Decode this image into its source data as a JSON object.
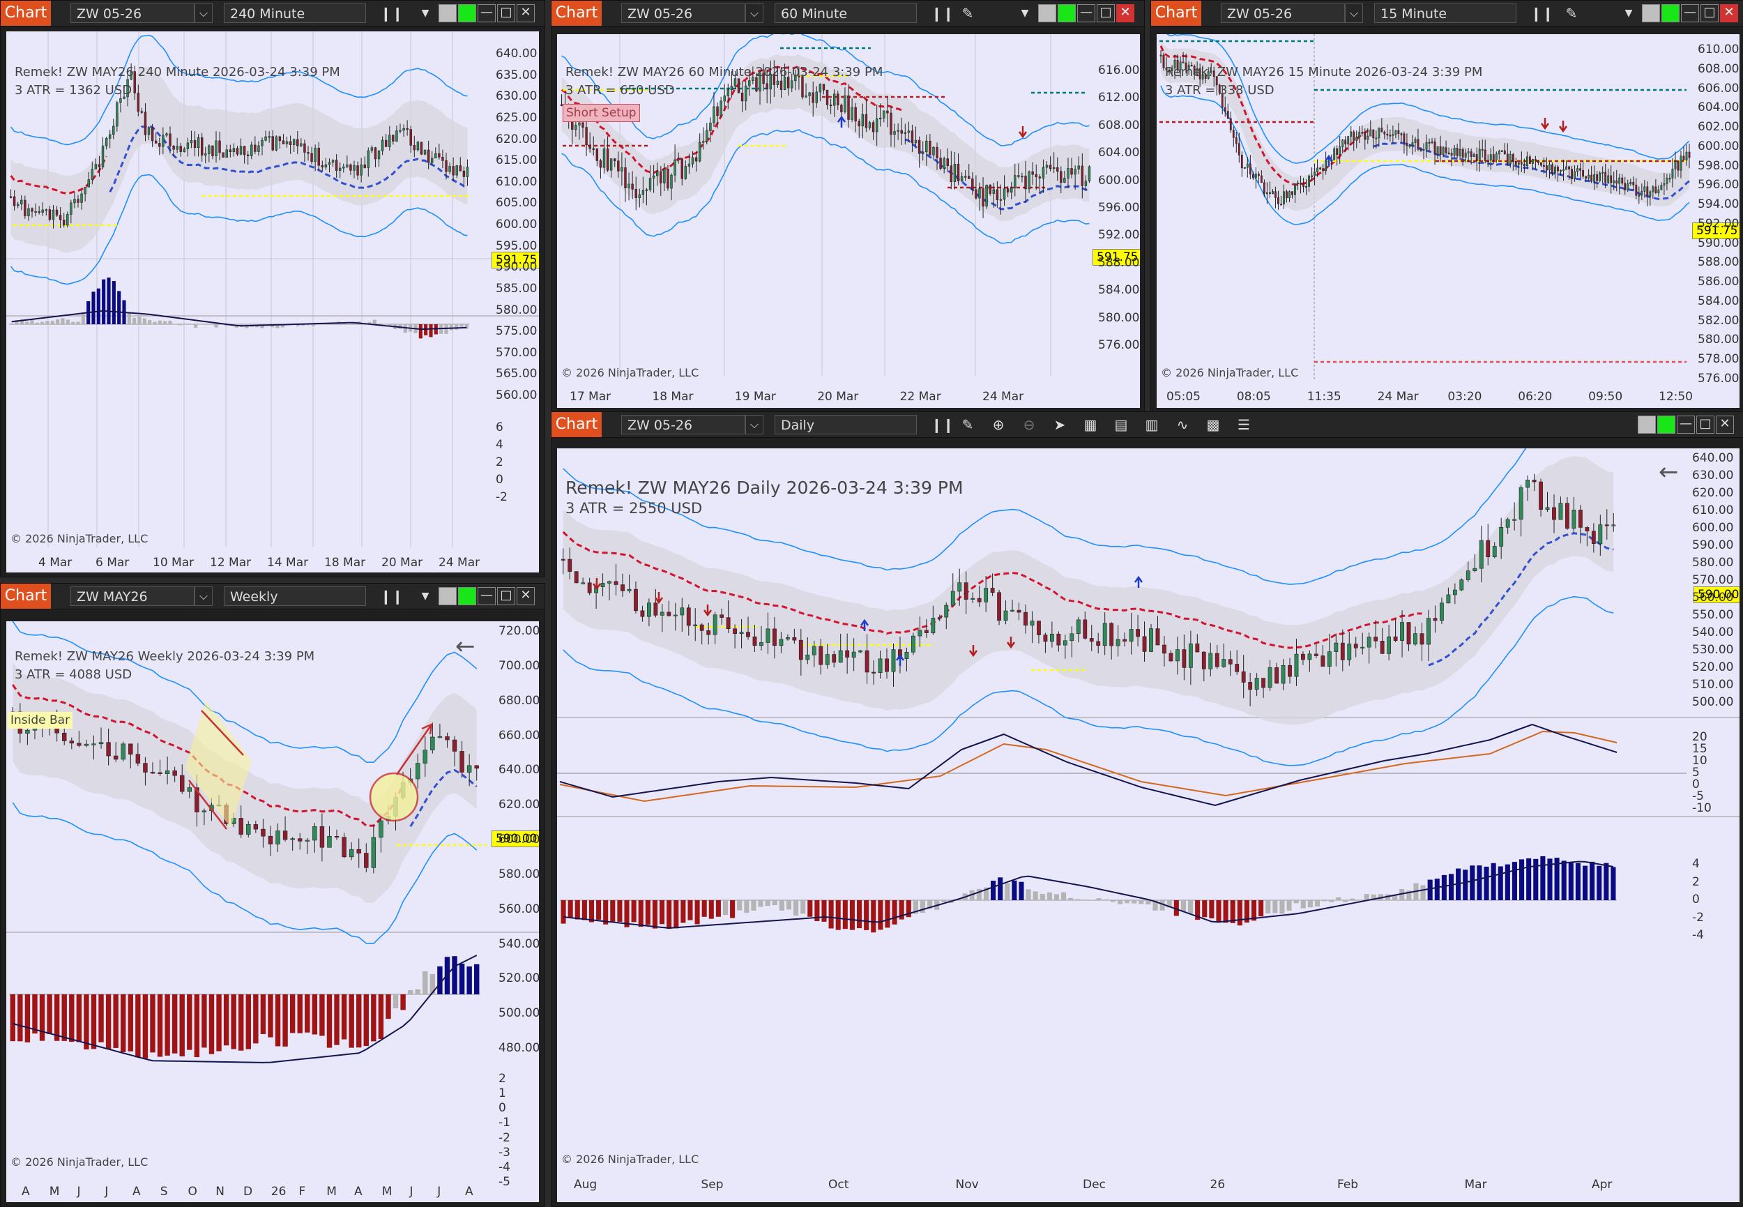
{
  "windows": [
    {
      "id": "w240",
      "tab": "Chart",
      "instrument": "ZW 05-26",
      "interval": "240 Minute",
      "header": "Remek!  ZW MAY26  240 Minute  2026-03-24 3:39 PM",
      "atr": "3 ATR = 1362 USD",
      "price_tag": "591.75",
      "copyright": "© 2026 NinjaTrader, LLC",
      "y_ticks": [
        "640.00",
        "635.00",
        "630.00",
        "625.00",
        "620.00",
        "615.00",
        "610.00",
        "605.00",
        "600.00",
        "595.00",
        "590.00",
        "585.00",
        "580.00",
        "575.00",
        "570.00",
        "565.00",
        "560.00"
      ],
      "osc_ticks": [
        "6",
        "4",
        "2",
        "0",
        "-2"
      ],
      "x_ticks": [
        "4 Mar",
        "6 Mar",
        "10 Mar",
        "12 Mar",
        "14 Mar",
        "18 Mar",
        "20 Mar",
        "24 Mar"
      ]
    },
    {
      "id": "w60",
      "tab": "Chart",
      "instrument": "ZW 05-26",
      "interval": "60 Minute",
      "header": "Remek!  ZW MAY26  60 Minute  2026-03-24 3:39 PM",
      "atr": "3 ATR = 650 USD",
      "label": "Short Setup",
      "price_tag": "591.75",
      "copyright": "© 2026 NinjaTrader, LLC",
      "y_ticks": [
        "616.00",
        "612.00",
        "608.00",
        "604.00",
        "600.00",
        "596.00",
        "592.00",
        "588.00",
        "584.00",
        "580.00",
        "576.00"
      ],
      "x_ticks": [
        "17 Mar",
        "18 Mar",
        "19 Mar",
        "20 Mar",
        "22 Mar",
        "24 Mar"
      ]
    },
    {
      "id": "w15",
      "tab": "Chart",
      "instrument": "ZW 05-26",
      "interval": "15 Minute",
      "header": "Remek!  ZW MAY26  15 Minute  2026-03-24 3:39 PM",
      "atr": "3 ATR = 338 USD",
      "price_tag": "591.75",
      "copyright": "© 2026 NinjaTrader, LLC",
      "y_ticks": [
        "610.00",
        "608.00",
        "606.00",
        "604.00",
        "602.00",
        "600.00",
        "598.00",
        "596.00",
        "594.00",
        "592.00",
        "590.00",
        "588.00",
        "586.00",
        "584.00",
        "582.00",
        "580.00",
        "578.00",
        "576.00"
      ],
      "x_ticks": [
        "05:05",
        "08:05",
        "11:35",
        "24 Mar",
        "03:20",
        "06:20",
        "09:50",
        "12:50"
      ]
    },
    {
      "id": "wWeek",
      "tab": "Chart",
      "instrument": "ZW MAY26",
      "interval": "Weekly",
      "header": "Remek!  ZW MAY26  Weekly  2026-03-24 3:39 PM",
      "atr": "3 ATR = 4088 USD",
      "label": "Inside Bar",
      "price_tag": "590.00",
      "copyright": "© 2026 NinjaTrader, LLC",
      "y_ticks": [
        "720.00",
        "700.00",
        "680.00",
        "660.00",
        "640.00",
        "620.00",
        "600.00",
        "580.00",
        "560.00",
        "540.00",
        "520.00",
        "500.00",
        "480.00"
      ],
      "osc_ticks": [
        "2",
        "1",
        "0",
        "-1",
        "-2",
        "-3",
        "-4",
        "-5"
      ],
      "x_ticks": [
        "A",
        "M",
        "J",
        "J",
        "A",
        "S",
        "O",
        "N",
        "D",
        "26",
        "F",
        "M",
        "A",
        "M",
        "J",
        "J",
        "A"
      ]
    },
    {
      "id": "wDaily",
      "tab": "Chart",
      "instrument": "ZW 05-26",
      "interval": "Daily",
      "header": "Remek!  ZW MAY26  Daily  2026-03-24 3:39 PM",
      "atr": "3 ATR = 2550 USD",
      "price_tag": "590.00",
      "copyright": "© 2026 NinjaTrader, LLC",
      "y_ticks": [
        "640.00",
        "630.00",
        "620.00",
        "610.00",
        "600.00",
        "590.00",
        "580.00",
        "570.00",
        "560.00",
        "550.00",
        "540.00",
        "530.00",
        "520.00",
        "510.00",
        "500.00"
      ],
      "macd_ticks": [
        "20",
        "15",
        "10",
        "5",
        "0",
        "-5",
        "-10"
      ],
      "osc_ticks": [
        "4",
        "2",
        "0",
        "-2",
        "-4"
      ],
      "x_ticks": [
        "Aug",
        "Sep",
        "Oct",
        "Nov",
        "Dec",
        "26",
        "Feb",
        "Mar",
        "Apr"
      ]
    }
  ],
  "colors": {
    "chart_bg": "#e9e8fb",
    "tab_orange": "#e0501e",
    "band_blue": "#1e90ff",
    "trend_red": "#d2142d",
    "trend_blue": "#3250d2",
    "level_yellow": "#ffff00",
    "hist_red": "#a01414",
    "hist_navy": "#0a0a82",
    "hist_gray": "#b4b4b4"
  }
}
